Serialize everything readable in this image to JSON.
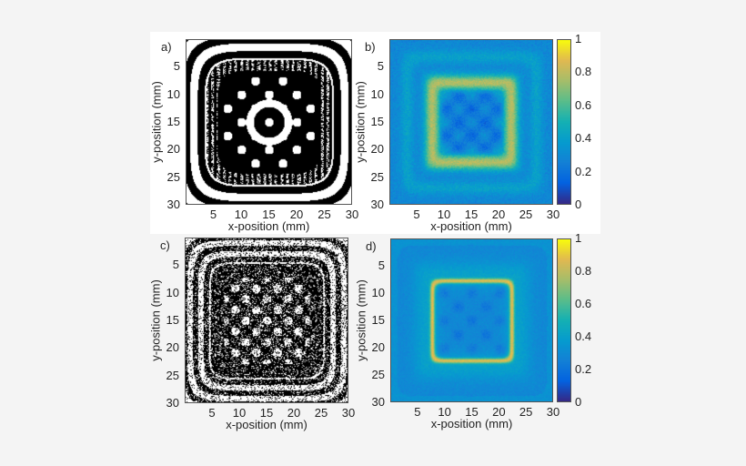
{
  "chart_data": [
    {
      "panel_label": "a)",
      "type": "heatmap",
      "colormap": "binary",
      "xlabel": "x-position (mm)",
      "ylabel": "y-position (mm)",
      "xlim": [
        0,
        30
      ],
      "ylim": [
        0,
        30
      ],
      "x_ticks": [
        "5",
        "10",
        "15",
        "20",
        "25",
        "30"
      ],
      "y_ticks": [
        "5",
        "10",
        "15",
        "20",
        "25",
        "30"
      ],
      "y_direction": "reversed"
    },
    {
      "panel_label": "b)",
      "type": "heatmap",
      "colormap": "parula",
      "xlabel": "x-position (mm)",
      "ylabel": "y-position (mm)",
      "xlim": [
        0,
        30
      ],
      "ylim": [
        0,
        30
      ],
      "x_ticks": [
        "5",
        "10",
        "15",
        "20",
        "25",
        "30"
      ],
      "y_ticks": [
        "5",
        "10",
        "15",
        "20",
        "25",
        "30"
      ],
      "y_direction": "reversed",
      "colorbar": {
        "range": [
          0,
          1
        ],
        "ticks": [
          "0",
          "0.2",
          "0.4",
          "0.6",
          "0.8",
          "1"
        ]
      }
    },
    {
      "panel_label": "c)",
      "type": "heatmap",
      "colormap": "binary",
      "xlabel": "x-position (mm)",
      "ylabel": "y-position (mm)",
      "xlim": [
        0,
        30
      ],
      "ylim": [
        0,
        30
      ],
      "x_ticks": [
        "5",
        "10",
        "15",
        "20",
        "25",
        "30"
      ],
      "y_ticks": [
        "5",
        "10",
        "15",
        "20",
        "25",
        "30"
      ],
      "y_direction": "reversed"
    },
    {
      "panel_label": "d)",
      "type": "heatmap",
      "colormap": "parula",
      "xlabel": "x-position (mm)",
      "ylabel": "y-position (mm)",
      "xlim": [
        0,
        30
      ],
      "ylim": [
        0,
        30
      ],
      "x_ticks": [
        "5",
        "10",
        "15",
        "20",
        "25",
        "30"
      ],
      "y_ticks": [
        "5",
        "10",
        "15",
        "20",
        "25",
        "30"
      ],
      "y_direction": "reversed",
      "colorbar": {
        "range": [
          0,
          1
        ],
        "ticks": [
          "0",
          "0.2",
          "0.4",
          "0.6",
          "0.8",
          "1"
        ]
      }
    }
  ]
}
